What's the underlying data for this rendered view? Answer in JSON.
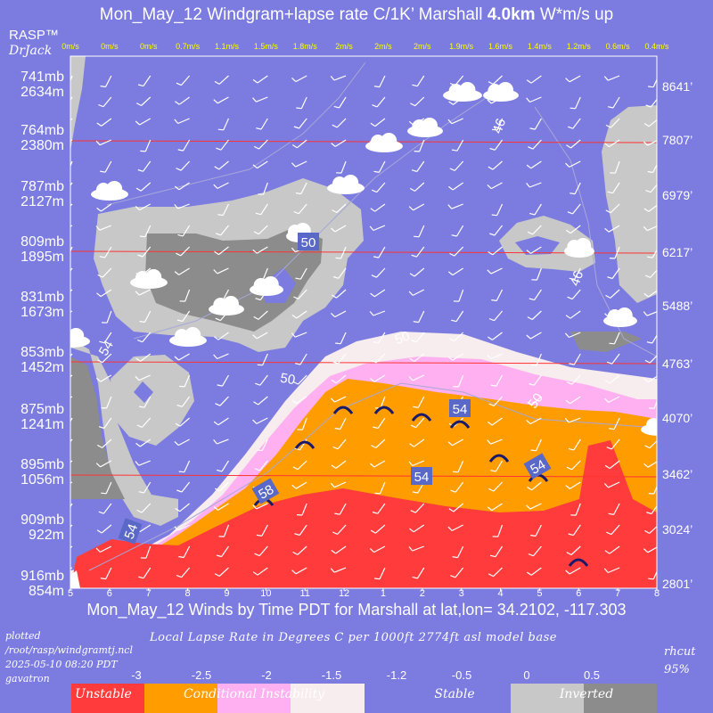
{
  "title": {
    "prefix": "Mon_May_12 Windgram+lapse rate C/1K’  Marshall ",
    "height": "4.0km",
    "suffix": "  W*m/s up"
  },
  "brand": {
    "rasp": "RASP™",
    "drjack": "DrJack"
  },
  "colors": {
    "background": "#7b7be0",
    "unstable": "#ff3b3b",
    "conditional": "#ff9c00",
    "pink": "#ffb0f0",
    "cream": "#f7ecee",
    "stable": "#7b7be0",
    "inverted_light": "#c8c8c8",
    "inverted_dark": "#8c8c8c",
    "wstar_label": "#ffff00",
    "line_red": "#ff3333"
  },
  "footer": {
    "xtitle": "Mon_May_12 Winds by Time PDT for Marshall at lat,lon= 34.2102, -117.303",
    "plotted_lines": [
      "plotted",
      "/root/rasp/windgramtj.ncl",
      "2025-05-10 08:20 PDT",
      "gavatron"
    ],
    "legend_title": "Local Lapse Rate in Degrees C per 1000ft  2774ft asl model base",
    "rhcut_lines": [
      "rhcut",
      "95%"
    ]
  },
  "legend": {
    "ticks": [
      "-3",
      "-2.5",
      "-2",
      "-1.5",
      "-1.2",
      "-0.5",
      "0",
      "0.5"
    ],
    "labels": [
      "Unstable",
      "Conditional Instability",
      "Stable",
      "Inverted"
    ],
    "colors": [
      "#ff3b3b",
      "#ff9c00",
      "#ffb0f0",
      "#f7ecee",
      "#7b7be0",
      "#7b7be0",
      "#c8c8c8",
      "#8c8c8c"
    ]
  },
  "chart_data": {
    "type": "heatmap",
    "title": "Mon_May_12 Windgram+lapse rate C/1K’  Marshall 4.0km  W*m/s up",
    "xlabel": "Mon_May_12 Winds by Time PDT for Marshall at lat,lon= 34.2102, -117.303",
    "x": [
      "5",
      "6",
      "7",
      "8",
      "9",
      "10",
      "11",
      "12",
      "1",
      "2",
      "3",
      "4",
      "5",
      "6",
      "7",
      "8"
    ],
    "wstar": [
      "0m/s",
      "0m/s",
      "0m/s",
      "0.7m/s",
      "1.1m/s",
      "1.5m/s",
      "1.8m/s",
      "2m/s",
      "2m/s",
      "2m/s",
      "1.9m/s",
      "1.6m/s",
      "1.4m/s",
      "1.2m/s",
      "0.6m/s",
      "0.4m/s"
    ],
    "left_axis": [
      {
        "mb": "741mb",
        "m": "2634m"
      },
      {
        "mb": "764mb",
        "m": "2380m"
      },
      {
        "mb": "787mb",
        "m": "2127m"
      },
      {
        "mb": "809mb",
        "m": "1895m"
      },
      {
        "mb": "831mb",
        "m": "1673m"
      },
      {
        "mb": "853mb",
        "m": "1452m"
      },
      {
        "mb": "875mb",
        "m": "1241m"
      },
      {
        "mb": "895mb",
        "m": "1056m"
      },
      {
        "mb": "909mb",
        "m": "922m"
      },
      {
        "mb": "916mb",
        "m": "854m"
      }
    ],
    "right_axis": [
      "8641’",
      "7807’",
      "6979’",
      "6217’",
      "5488’",
      "4763’",
      "4070’",
      "3462’",
      "3024’",
      "2801’"
    ],
    "contour_labels": [
      "46",
      "50",
      "46",
      "54",
      "50",
      "50",
      "50",
      "54",
      "54",
      "58",
      "54",
      "54"
    ],
    "legend_ticks": [
      "-3",
      "-2.5",
      "-2",
      "-1.5",
      "-1.2",
      "-0.5",
      "0",
      "0.5"
    ],
    "legend_labels": [
      "Unstable",
      "Conditional Instability",
      "Stable",
      "Inverted"
    ]
  }
}
